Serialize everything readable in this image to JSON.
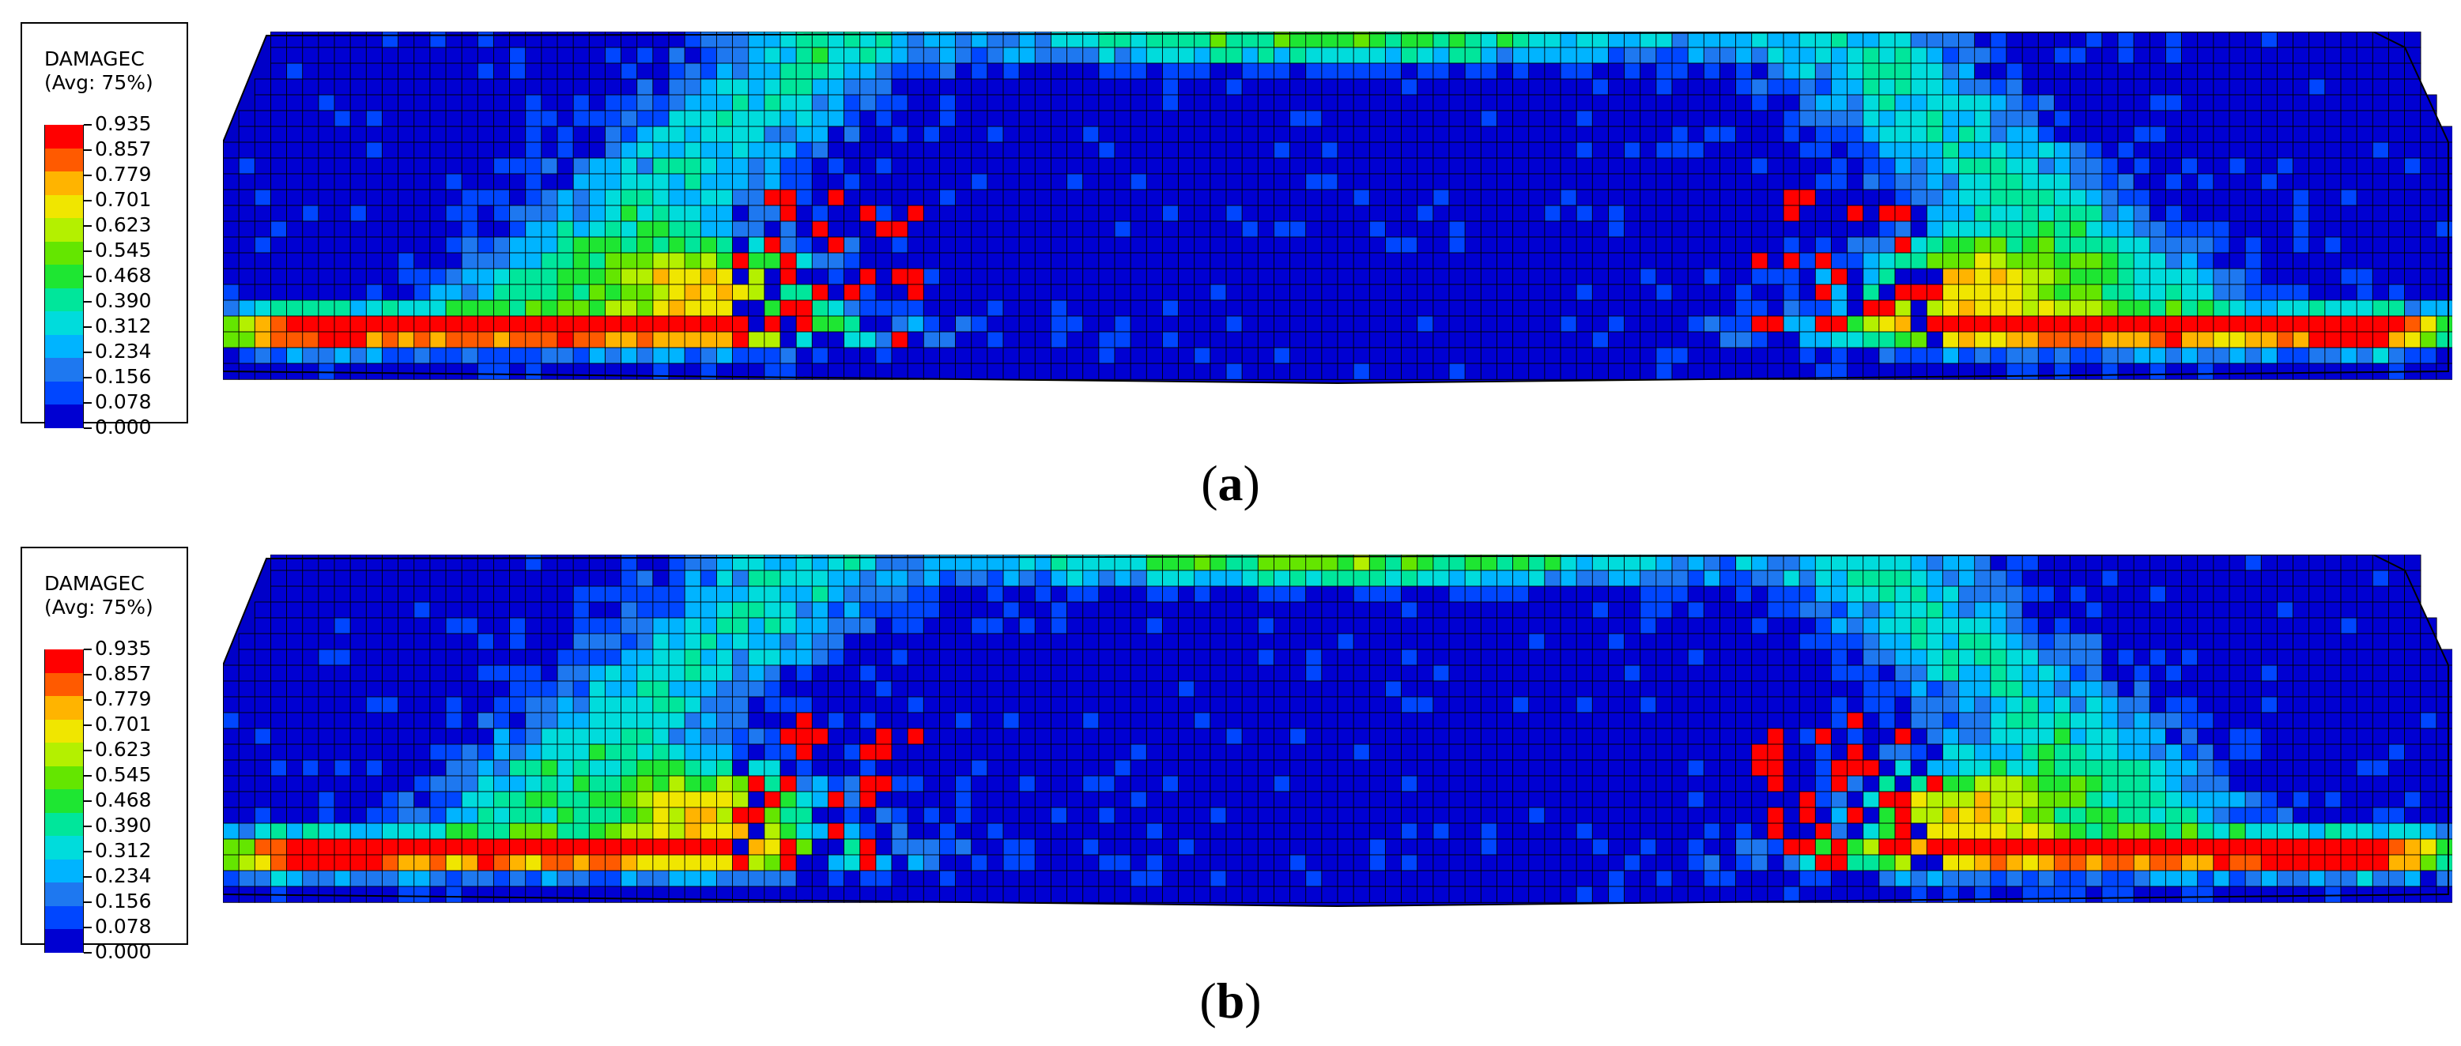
{
  "figure": {
    "panels": [
      {
        "id": "a",
        "caption": {
          "open": "(",
          "letter": "a",
          "close": ")"
        },
        "legend": {
          "title": "DAMAGEC",
          "subtitle": "(Avg: 75%)",
          "levels": [
            "0.935",
            "0.857",
            "0.779",
            "0.701",
            "0.623",
            "0.545",
            "0.468",
            "0.390",
            "0.312",
            "0.234",
            "0.156",
            "0.078",
            "0.000"
          ]
        }
      },
      {
        "id": "b",
        "caption": {
          "open": "(",
          "letter": "b",
          "close": ")"
        },
        "legend": {
          "title": "DAMAGEC",
          "subtitle": "(Avg: 75%)",
          "levels": [
            "0.935",
            "0.857",
            "0.779",
            "0.701",
            "0.623",
            "0.545",
            "0.468",
            "0.390",
            "0.312",
            "0.234",
            "0.156",
            "0.078",
            "0.000"
          ]
        }
      }
    ],
    "colors": {
      "scale": [
        "#ff0000",
        "#ff5a00",
        "#ffb400",
        "#f0e600",
        "#b4f000",
        "#64e600",
        "#1ee632",
        "#00e69b",
        "#00dcdc",
        "#00b4ff",
        "#1e78f0",
        "#0046ff",
        "#0000d2"
      ],
      "grid": "#000000",
      "background": "#0000c8"
    }
  }
}
